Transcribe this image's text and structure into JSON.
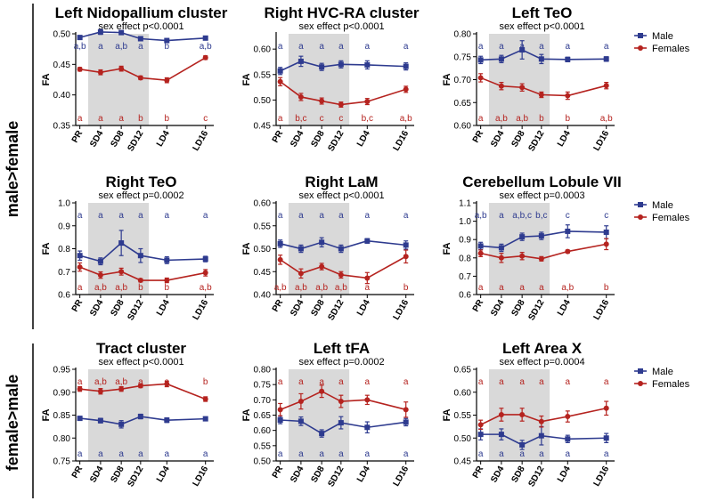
{
  "colors": {
    "male": "#2e3b8f",
    "female": "#b5231f",
    "shade": "#d9d9d9"
  },
  "x_categories": [
    "PR",
    "SD4",
    "SD8",
    "SD12",
    "LD4",
    "LD16"
  ],
  "legend": {
    "male": "Male",
    "female": "Females"
  },
  "groups": [
    {
      "label": "male>female"
    },
    {
      "label": "female>male"
    }
  ],
  "chart_data": [
    {
      "type": "line",
      "title": "Left Nidopallium cluster",
      "subtitle": "sex effect p<0.0001",
      "ylabel": "FA",
      "ylim": [
        0.35,
        0.5
      ],
      "yticks": [
        0.35,
        0.4,
        0.45,
        0.5
      ],
      "ytick_labels": [
        "0.35",
        "0.40",
        "0.45",
        "0.50"
      ],
      "series": [
        {
          "name": "Male",
          "values": [
            0.494,
            0.503,
            0.502,
            0.492,
            0.489,
            0.493
          ],
          "errors": [
            0.003,
            0.004,
            0.003,
            0.003,
            0.003,
            0.003
          ],
          "labels": [
            "a,b",
            "a",
            "a,b",
            "a",
            "b",
            "a,b"
          ]
        },
        {
          "name": "Females",
          "values": [
            0.442,
            0.437,
            0.443,
            0.428,
            0.424,
            0.461
          ],
          "errors": [
            0.003,
            0.004,
            0.004,
            0.003,
            0.004,
            0.003
          ],
          "labels": [
            "a",
            "a",
            "a",
            "b",
            "b",
            "c"
          ]
        }
      ],
      "legend": false
    },
    {
      "type": "line",
      "title": "Right HVC-RA cluster",
      "subtitle": "sex effect p<0.0001",
      "ylabel": "FA",
      "ylim": [
        0.45,
        0.63
      ],
      "yticks": [
        0.45,
        0.5,
        0.55,
        0.6
      ],
      "ytick_labels": [
        "0.45",
        "0.50",
        "0.55",
        "0.60"
      ],
      "series": [
        {
          "name": "Male",
          "values": [
            0.557,
            0.576,
            0.565,
            0.57,
            0.569,
            0.566
          ],
          "errors": [
            0.007,
            0.01,
            0.007,
            0.007,
            0.008,
            0.007
          ],
          "labels": [
            "a",
            "a",
            "a",
            "a",
            "a",
            "a"
          ]
        },
        {
          "name": "Females",
          "values": [
            0.536,
            0.506,
            0.498,
            0.491,
            0.497,
            0.521
          ],
          "errors": [
            0.008,
            0.007,
            0.006,
            0.005,
            0.006,
            0.006
          ],
          "labels": [
            "a",
            "b,c",
            "c",
            "c",
            "b,c",
            "a,b"
          ]
        }
      ],
      "legend": false
    },
    {
      "type": "line",
      "title": "Left TeO",
      "subtitle": "sex effect p<0.0001",
      "ylabel": "FA",
      "ylim": [
        0.6,
        0.8
      ],
      "yticks": [
        0.6,
        0.65,
        0.7,
        0.75,
        0.8
      ],
      "ytick_labels": [
        "0.60",
        "0.65",
        "0.70",
        "0.75",
        "0.80"
      ],
      "series": [
        {
          "name": "Male",
          "values": [
            0.743,
            0.745,
            0.765,
            0.745,
            0.744,
            0.745
          ],
          "errors": [
            0.008,
            0.008,
            0.02,
            0.01,
            0.005,
            0.005
          ],
          "labels": [
            "a",
            "a",
            "a",
            "a",
            "a",
            "a"
          ]
        },
        {
          "name": "Females",
          "values": [
            0.704,
            0.686,
            0.683,
            0.667,
            0.665,
            0.687
          ],
          "errors": [
            0.009,
            0.008,
            0.008,
            0.006,
            0.008,
            0.007
          ],
          "labels": [
            "a",
            "a,b",
            "a,b",
            "b",
            "b",
            "a,b"
          ]
        }
      ],
      "legend": true
    },
    {
      "type": "line",
      "title": "Right TeO",
      "subtitle": "sex effect p=0.0002",
      "ylabel": "FA",
      "ylim": [
        0.6,
        1.0
      ],
      "yticks": [
        0.6,
        0.7,
        0.8,
        0.9,
        1.0
      ],
      "ytick_labels": [
        "0.6",
        "0.7",
        "0.8",
        "0.9",
        "1.0"
      ],
      "series": [
        {
          "name": "Male",
          "values": [
            0.77,
            0.745,
            0.825,
            0.77,
            0.75,
            0.755
          ],
          "errors": [
            0.02,
            0.015,
            0.055,
            0.03,
            0.015,
            0.012
          ],
          "labels": [
            "a",
            "a",
            "a",
            "a",
            "a",
            "a"
          ]
        },
        {
          "name": "Females",
          "values": [
            0.72,
            0.685,
            0.7,
            0.662,
            0.662,
            0.695
          ],
          "errors": [
            0.018,
            0.014,
            0.015,
            0.007,
            0.01,
            0.014
          ],
          "labels": [
            "a",
            "a,b",
            "a,b",
            "b",
            "b",
            "a,b"
          ]
        }
      ],
      "legend": false
    },
    {
      "type": "line",
      "title": "Right LaM",
      "subtitle": "sex effect p<0.0001",
      "ylabel": "FA",
      "ylim": [
        0.4,
        0.6
      ],
      "yticks": [
        0.4,
        0.45,
        0.5,
        0.55,
        0.6
      ],
      "ytick_labels": [
        "0.40",
        "0.45",
        "0.50",
        "0.55",
        "0.60"
      ],
      "series": [
        {
          "name": "Male",
          "values": [
            0.511,
            0.5,
            0.514,
            0.5,
            0.517,
            0.508
          ],
          "errors": [
            0.008,
            0.008,
            0.01,
            0.008,
            0.005,
            0.009
          ],
          "labels": [
            "a",
            "a",
            "a",
            "a",
            "a",
            "a"
          ]
        },
        {
          "name": "Females",
          "values": [
            0.476,
            0.446,
            0.461,
            0.443,
            0.436,
            0.483
          ],
          "errors": [
            0.01,
            0.01,
            0.007,
            0.007,
            0.012,
            0.014
          ],
          "labels": [
            "a,b",
            "a,b",
            "a,b",
            "a,b",
            "a",
            "b"
          ]
        }
      ],
      "legend": false
    },
    {
      "type": "line",
      "title": "Cerebellum Lobule VII",
      "subtitle": "sex effect p=0.0003",
      "ylabel": "FA",
      "ylim": [
        0.6,
        1.1
      ],
      "yticks": [
        0.6,
        0.7,
        0.8,
        0.9,
        1.0,
        1.1
      ],
      "ytick_labels": [
        "0.6",
        "0.7",
        "0.8",
        "0.9",
        "1.0",
        "1.1"
      ],
      "series": [
        {
          "name": "Male",
          "values": [
            0.865,
            0.855,
            0.915,
            0.92,
            0.945,
            0.94
          ],
          "errors": [
            0.02,
            0.02,
            0.02,
            0.02,
            0.035,
            0.035
          ],
          "labels": [
            "a,b",
            "a",
            "a,b,c",
            "b,c",
            "c",
            "c"
          ]
        },
        {
          "name": "Females",
          "values": [
            0.825,
            0.8,
            0.81,
            0.795,
            0.835,
            0.875
          ],
          "errors": [
            0.018,
            0.025,
            0.02,
            0.012,
            0.008,
            0.03
          ],
          "labels": [
            "a",
            "a",
            "a",
            "a",
            "a,b",
            "b"
          ]
        }
      ],
      "legend": true
    },
    {
      "type": "line",
      "title": "Tract cluster",
      "subtitle": "sex effect p<0.0001",
      "ylabel": "FA",
      "ylim": [
        0.75,
        0.95
      ],
      "yticks": [
        0.75,
        0.8,
        0.85,
        0.9,
        0.95
      ],
      "ytick_labels": [
        "0.75",
        "0.80",
        "0.85",
        "0.90",
        "0.95"
      ],
      "series": [
        {
          "name": "Male",
          "values": [
            0.843,
            0.838,
            0.83,
            0.847,
            0.839,
            0.842
          ],
          "errors": [
            0.004,
            0.005,
            0.008,
            0.005,
            0.005,
            0.004
          ],
          "labels": [
            "a",
            "a",
            "a",
            "a",
            "a",
            "a"
          ]
        },
        {
          "name": "Females",
          "values": [
            0.907,
            0.902,
            0.907,
            0.914,
            0.918,
            0.885
          ],
          "errors": [
            0.005,
            0.006,
            0.005,
            0.004,
            0.006,
            0.005
          ],
          "labels": [
            "a",
            "a,b",
            "a,b",
            "a",
            "a",
            "b"
          ]
        }
      ],
      "legend": false
    },
    {
      "type": "line",
      "title": "Left tFA",
      "subtitle": "sex effect p=0.0002",
      "ylabel": "FA",
      "ylim": [
        0.5,
        0.8
      ],
      "yticks": [
        0.5,
        0.55,
        0.6,
        0.65,
        0.7,
        0.75,
        0.8
      ],
      "ytick_labels": [
        "0.50",
        "0.55",
        "0.60",
        "0.65",
        "0.70",
        "0.75",
        "0.80"
      ],
      "series": [
        {
          "name": "Male",
          "values": [
            0.634,
            0.63,
            0.59,
            0.625,
            0.61,
            0.627
          ],
          "errors": [
            0.012,
            0.014,
            0.012,
            0.02,
            0.018,
            0.012
          ],
          "labels": [
            "a",
            "a",
            "a",
            "a",
            "a",
            "a"
          ]
        },
        {
          "name": "Females",
          "values": [
            0.668,
            0.695,
            0.728,
            0.695,
            0.7,
            0.668
          ],
          "errors": [
            0.02,
            0.025,
            0.02,
            0.02,
            0.015,
            0.025
          ],
          "labels": [
            "a",
            "a",
            "a",
            "a",
            "a",
            "a"
          ]
        }
      ],
      "legend": false
    },
    {
      "type": "line",
      "title": "Left Area X",
      "subtitle": "sex effect p=0.0004",
      "ylabel": "FA",
      "ylim": [
        0.45,
        0.65
      ],
      "yticks": [
        0.45,
        0.5,
        0.55,
        0.6,
        0.65
      ],
      "ytick_labels": [
        "0.45",
        "0.50",
        "0.55",
        "0.60",
        "0.65"
      ],
      "series": [
        {
          "name": "Male",
          "values": [
            0.508,
            0.508,
            0.485,
            0.505,
            0.498,
            0.5
          ],
          "errors": [
            0.012,
            0.012,
            0.01,
            0.02,
            0.008,
            0.01
          ],
          "labels": [
            "a",
            "a",
            "a",
            "a",
            "a",
            "a"
          ]
        },
        {
          "name": "Females",
          "values": [
            0.529,
            0.551,
            0.551,
            0.536,
            0.547,
            0.565
          ],
          "errors": [
            0.01,
            0.014,
            0.014,
            0.012,
            0.012,
            0.015
          ],
          "labels": [
            "a",
            "a",
            "a",
            "a",
            "a",
            "a"
          ]
        }
      ],
      "legend": true
    }
  ]
}
